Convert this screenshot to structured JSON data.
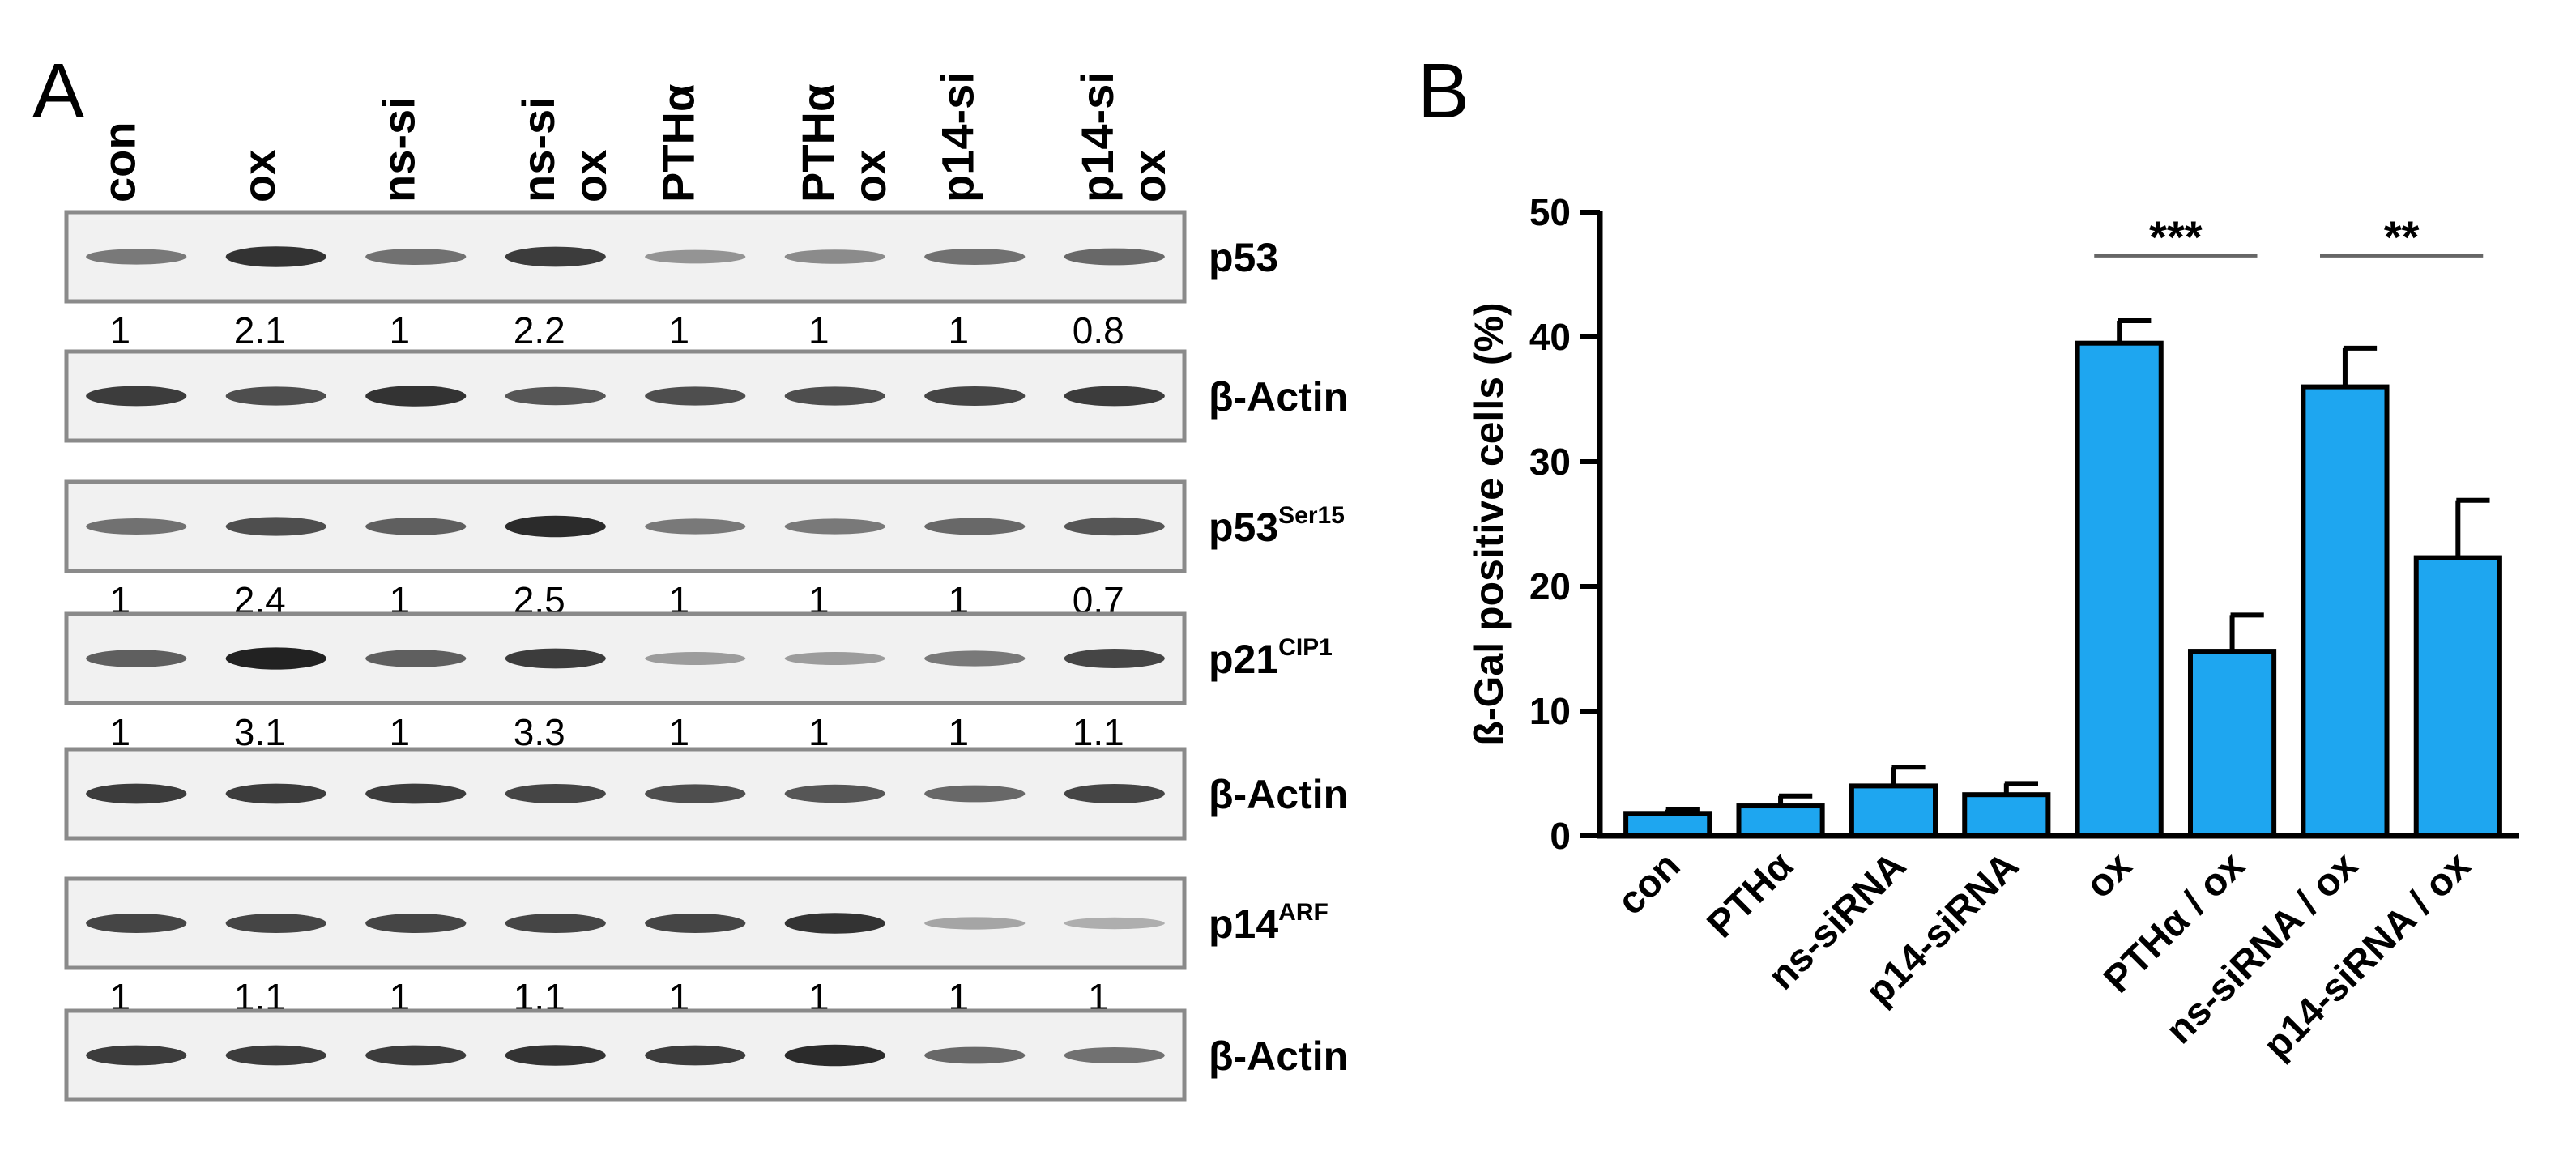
{
  "panel_a": {
    "letter": "A",
    "lane_headers": [
      {
        "line1": "con",
        "line2": ""
      },
      {
        "line1": "ox",
        "line2": ""
      },
      {
        "line1": "ns-si",
        "line2": ""
      },
      {
        "line1": "ns-si",
        "line2": "ox"
      },
      {
        "line1": "PTHα",
        "line2": ""
      },
      {
        "line1": "PTHα",
        "line2": "ox"
      },
      {
        "line1": "p14-si",
        "line2": ""
      },
      {
        "line1": "p14-si",
        "line2": "ox"
      }
    ],
    "blots": [
      {
        "label": "p53",
        "sup": "",
        "intensity": [
          0.45,
          0.85,
          0.5,
          0.8,
          0.3,
          0.35,
          0.5,
          0.55
        ],
        "quant": [
          "1",
          "2.1",
          "1",
          "2.2",
          "1",
          "1",
          "1",
          "0.8"
        ]
      },
      {
        "label": "β-Actin",
        "sup": "",
        "intensity": [
          0.8,
          0.7,
          0.85,
          0.65,
          0.7,
          0.7,
          0.75,
          0.8
        ],
        "quant": []
      },
      {
        "label": "p53",
        "sup": "Ser15",
        "intensity": [
          0.5,
          0.7,
          0.6,
          0.9,
          0.45,
          0.45,
          0.55,
          0.65
        ],
        "quant": [
          "1",
          "2.4",
          "1",
          "2.5",
          "1",
          "1",
          "1",
          "0.7"
        ]
      },
      {
        "label": "p21",
        "sup": "CIP1",
        "intensity": [
          0.6,
          0.95,
          0.6,
          0.8,
          0.25,
          0.25,
          0.45,
          0.75
        ],
        "quant": [
          "1",
          "3.1",
          "1",
          "3.3",
          "1",
          "1",
          "1",
          "1.1"
        ]
      },
      {
        "label": "β-Actin",
        "sup": "",
        "intensity": [
          0.8,
          0.8,
          0.8,
          0.75,
          0.7,
          0.65,
          0.55,
          0.75
        ],
        "quant": []
      },
      {
        "label": "p14",
        "sup": "ARF",
        "intensity": [
          0.75,
          0.75,
          0.75,
          0.75,
          0.75,
          0.85,
          0.2,
          0.15
        ],
        "quant": [
          "1",
          "1.1",
          "1",
          "1.1",
          "1",
          "1",
          "1",
          "1"
        ]
      },
      {
        "label": "β-Actin",
        "sup": "",
        "intensity": [
          0.8,
          0.8,
          0.8,
          0.85,
          0.8,
          0.9,
          0.55,
          0.5
        ],
        "quant": []
      }
    ]
  },
  "panel_b": {
    "letter": "B",
    "chart_data": {
      "type": "bar",
      "ylabel": "ß-Gal positive cells (%)",
      "ylim": [
        0,
        50
      ],
      "yticks": [
        0,
        10,
        20,
        30,
        40,
        50
      ],
      "categories": [
        "con",
        "PTHα",
        "ns-siRNA",
        "p14-siRNA",
        "ox",
        "PTHα / ox",
        "ns-siRNA / ox",
        "p14-siRNA / ox"
      ],
      "values": [
        1.8,
        2.4,
        4.0,
        3.3,
        39.5,
        14.8,
        36.0,
        22.3
      ],
      "errors": [
        0.3,
        0.8,
        1.5,
        0.9,
        1.8,
        2.9,
        3.1,
        4.6
      ],
      "bar_color": "#1ea6f0",
      "significance": [
        {
          "from": 4,
          "to": 5,
          "label": "***",
          "y": 46.5
        },
        {
          "from": 6,
          "to": 7,
          "label": "**",
          "y": 46.5
        }
      ]
    }
  }
}
